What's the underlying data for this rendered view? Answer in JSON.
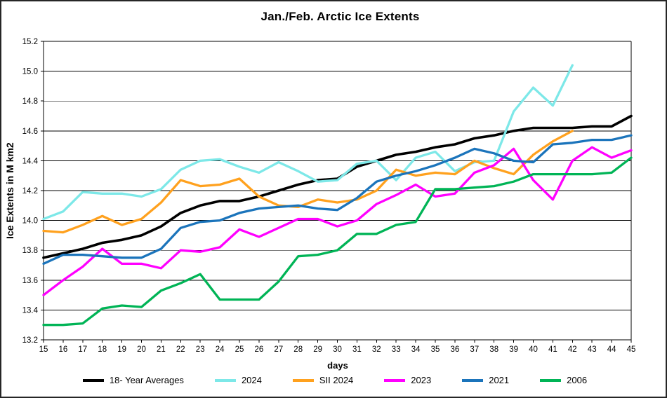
{
  "title": "Jan./Feb. Arctic Ice Extents",
  "chart_data": {
    "type": "line",
    "title": "Jan./Feb. Arctic Ice Extents",
    "xlabel": "days",
    "ylabel": "Ice Extents in M km2",
    "xlim": [
      15,
      45
    ],
    "ylim": [
      13.2,
      15.2
    ],
    "x_tick_step": 1,
    "y_tick_step": 0.2,
    "grid": true,
    "legend_position": "bottom",
    "x": [
      15,
      16,
      17,
      18,
      19,
      20,
      21,
      22,
      23,
      24,
      25,
      26,
      27,
      28,
      29,
      30,
      31,
      32,
      33,
      34,
      35,
      36,
      37,
      38,
      39,
      40,
      41,
      42,
      43,
      44,
      45
    ],
    "series": [
      {
        "name": "18- Year Averages",
        "color": "#000000",
        "values": [
          13.75,
          13.78,
          13.81,
          13.85,
          13.87,
          13.9,
          13.96,
          14.05,
          14.1,
          14.13,
          14.13,
          14.16,
          14.2,
          14.24,
          14.27,
          14.28,
          14.36,
          14.4,
          14.44,
          14.46,
          14.49,
          14.51,
          14.55,
          14.57,
          14.6,
          14.62,
          14.62,
          14.62,
          14.63,
          14.63,
          14.7
        ]
      },
      {
        "name": "2024",
        "color": "#7DE8E8",
        "values": [
          14.01,
          14.06,
          14.19,
          14.18,
          14.18,
          14.16,
          14.21,
          14.34,
          14.4,
          14.41,
          14.36,
          14.32,
          14.39,
          14.33,
          14.26,
          14.27,
          14.38,
          14.4,
          14.27,
          14.42,
          14.46,
          14.33,
          14.39,
          14.4,
          14.73,
          14.89,
          14.77,
          15.04,
          null,
          null,
          null
        ]
      },
      {
        "name": "SII 2024",
        "color": "#FFA11E",
        "values": [
          13.93,
          13.92,
          13.97,
          14.03,
          13.97,
          14.01,
          14.12,
          14.27,
          14.23,
          14.24,
          14.28,
          14.16,
          14.1,
          14.09,
          14.14,
          14.12,
          14.14,
          14.2,
          14.34,
          14.3,
          14.32,
          14.31,
          14.4,
          14.35,
          14.31,
          14.44,
          14.53,
          14.6,
          null,
          null,
          null
        ]
      },
      {
        "name": "2023",
        "color": "#FF00FF",
        "values": [
          13.5,
          13.6,
          13.69,
          13.81,
          13.71,
          13.71,
          13.68,
          13.8,
          13.79,
          13.82,
          13.94,
          13.89,
          13.95,
          14.01,
          14.01,
          13.96,
          14.0,
          14.11,
          14.17,
          14.24,
          14.16,
          14.18,
          14.32,
          14.37,
          14.48,
          14.27,
          14.14,
          14.4,
          14.49,
          14.42,
          14.47
        ]
      },
      {
        "name": "2021",
        "color": "#1B74BB",
        "values": [
          13.71,
          13.77,
          13.77,
          13.76,
          13.75,
          13.75,
          13.81,
          13.95,
          13.99,
          14.0,
          14.05,
          14.08,
          14.09,
          14.1,
          14.08,
          14.07,
          14.15,
          14.26,
          14.3,
          14.33,
          14.37,
          14.42,
          14.48,
          14.45,
          14.4,
          14.39,
          14.51,
          14.52,
          14.54,
          14.54,
          14.57
        ]
      },
      {
        "name": "2006",
        "color": "#00B456",
        "values": [
          13.3,
          13.3,
          13.31,
          13.41,
          13.43,
          13.42,
          13.53,
          13.58,
          13.64,
          13.47,
          13.47,
          13.47,
          13.59,
          13.76,
          13.77,
          13.8,
          13.91,
          13.91,
          13.97,
          13.99,
          14.21,
          14.21,
          14.22,
          14.23,
          14.26,
          14.31,
          14.31,
          14.31,
          14.31,
          14.32,
          14.42
        ]
      }
    ]
  }
}
